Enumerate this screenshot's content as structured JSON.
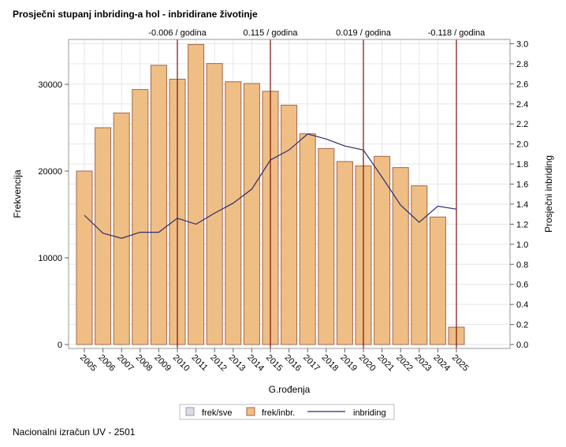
{
  "page": {
    "title": "Prosječni stupanj inbriding-a hol - inbridirane životinje",
    "footer": "Nacionalni izračun UV - 2501"
  },
  "colors": {
    "bar_fill": "#efbe84",
    "bar_stroke": "#a4664c",
    "line": "#2c2c6e",
    "ref_line": "#7a0f0f",
    "grid": "#e6e6e6",
    "legend_box1": "#dcdce8"
  },
  "chart_data": {
    "type": "bar",
    "xlabel": "G.rođenja",
    "ylabel": "Frekvencija",
    "y2label": "Prosječni inbriding",
    "ylim": [
      0,
      35000
    ],
    "y_ticks": [
      0,
      10000,
      20000,
      30000
    ],
    "y2lim": [
      0,
      3.0
    ],
    "y2_ticks": [
      0.0,
      0.2,
      0.4,
      0.6,
      0.8,
      1.0,
      1.2,
      1.4,
      1.6,
      1.8,
      2.0,
      2.2,
      2.4,
      2.6,
      2.8,
      3.0
    ],
    "categories": [
      "2005",
      "2006",
      "2007",
      "2008",
      "2009",
      "2010",
      "2011",
      "2012",
      "2013",
      "2014",
      "2015",
      "2016",
      "2017",
      "2018",
      "2019",
      "2020",
      "2021",
      "2022",
      "2023",
      "2024",
      "2025"
    ],
    "series": [
      {
        "name": "frek/inbr.",
        "kind": "bar",
        "values": [
          20000,
          25000,
          26700,
          29400,
          32200,
          30600,
          34600,
          32400,
          30300,
          30100,
          29200,
          27600,
          24300,
          22600,
          21100,
          20600,
          21700,
          20400,
          18300,
          14700,
          2000
        ]
      },
      {
        "name": "inbriding",
        "kind": "line",
        "axis": "right",
        "values": [
          1.29,
          1.11,
          1.06,
          1.12,
          1.12,
          1.26,
          1.2,
          1.31,
          1.41,
          1.55,
          1.84,
          1.94,
          2.1,
          2.05,
          1.98,
          1.94,
          1.67,
          1.39,
          1.22,
          1.38,
          1.35
        ]
      }
    ],
    "reference_lines": [
      {
        "x": "2010",
        "label": "-0.006 / godina"
      },
      {
        "x": "2015",
        "label": "0.115 / godina"
      },
      {
        "x": "2020",
        "label": "0.019 / godina"
      },
      {
        "x": "2025",
        "label": "-0.118 / godina"
      }
    ],
    "grid": true,
    "legend": {
      "placement": "bottom",
      "entries": [
        "frek/sve",
        "frek/inbr.",
        "inbriding"
      ]
    }
  }
}
